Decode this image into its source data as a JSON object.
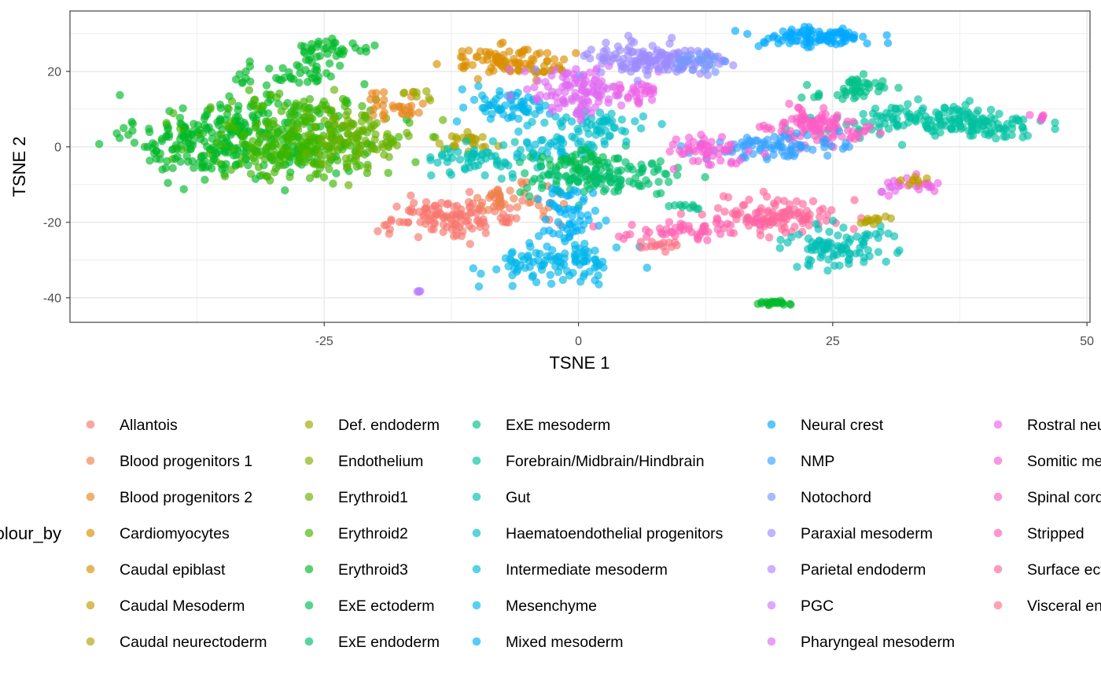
{
  "chart_data": {
    "type": "scatter",
    "xlabel": "TSNE 1",
    "ylabel": "TSNE 2",
    "xlim": [
      -50,
      50.3
    ],
    "ylim": [
      -46.5,
      36
    ],
    "x_ticks": [
      -25,
      0,
      25,
      50
    ],
    "x_tick_labels": [
      "-25",
      "0",
      "25",
      "50"
    ],
    "y_ticks": [
      -40,
      -20,
      0,
      20
    ],
    "y_tick_labels": [
      "-40",
      "-20",
      "0",
      "20"
    ],
    "grid": true,
    "point_alpha": 0.65,
    "legend_title": "colour_by",
    "legend_position": "bottom",
    "legend_entries": [
      {
        "label": "Allantois",
        "color": "#F8766D"
      },
      {
        "label": "Blood progenitors 1",
        "color": "#F07F4E"
      },
      {
        "label": "Blood progenitors 2",
        "color": "#E7861B"
      },
      {
        "label": "Cardiomyocytes",
        "color": "#DB8E00"
      },
      {
        "label": "Caudal epiblast",
        "color": "#CF9400"
      },
      {
        "label": "Caudal Mesoderm",
        "color": "#C09B00"
      },
      {
        "label": "Caudal neurectoderm",
        "color": "#B0A100"
      },
      {
        "label": "Def. endoderm",
        "color": "#9DA700"
      },
      {
        "label": "Endothelium",
        "color": "#85AD00"
      },
      {
        "label": "Erythroid1",
        "color": "#68B100"
      },
      {
        "label": "Erythroid2",
        "color": "#3DB600"
      },
      {
        "label": "Erythroid3",
        "color": "#00B928"
      },
      {
        "label": "ExE ectoderm",
        "color": "#00BB4E"
      },
      {
        "label": "ExE endoderm",
        "color": "#00BE6C"
      },
      {
        "label": "ExE mesoderm",
        "color": "#00C087"
      },
      {
        "label": "Forebrain/Midbrain/Hindbrain",
        "color": "#00C19F"
      },
      {
        "label": "Gut",
        "color": "#00BFB4"
      },
      {
        "label": "Haematoendothelial progenitors",
        "color": "#00BDC8"
      },
      {
        "label": "Intermediate mesoderm",
        "color": "#00BAD9"
      },
      {
        "label": "Mesenchyme",
        "color": "#00B6E9"
      },
      {
        "label": "Mixed mesoderm",
        "color": "#00B0F6"
      },
      {
        "label": "Neural crest",
        "color": "#00A9FF"
      },
      {
        "label": "NMP",
        "color": "#35A2FF"
      },
      {
        "label": "Notochord",
        "color": "#7698FF"
      },
      {
        "label": "Paraxial mesoderm",
        "color": "#9E8CFF"
      },
      {
        "label": "Parietal endoderm",
        "color": "#BA80FF"
      },
      {
        "label": "PGC",
        "color": "#D074FB"
      },
      {
        "label": "Pharyngeal mesoderm",
        "color": "#E16AF2"
      },
      {
        "label": "Rostral neurectoderm",
        "color": "#EE62E6"
      },
      {
        "label": "Somitic mesoderm",
        "color": "#F75ED6"
      },
      {
        "label": "Spinal cord",
        "color": "#FD5DC4"
      },
      {
        "label": "Stripped",
        "color": "#FF61B0"
      },
      {
        "label": "Surface ectoderm",
        "color": "#FF679B"
      },
      {
        "label": "Visceral endoderm",
        "color": "#FE6E86"
      }
    ],
    "clusters": [
      {
        "group": "Erythroid3",
        "cx": -33,
        "cy": 3,
        "sx": 5,
        "sy": 5.5,
        "n": 260
      },
      {
        "group": "Erythroid2",
        "cx": -27,
        "cy": 1,
        "sx": 5,
        "sy": 5,
        "n": 240
      },
      {
        "group": "Erythroid1",
        "cx": -22,
        "cy": 3,
        "sx": 3,
        "sy": 4,
        "n": 90
      },
      {
        "group": "Erythroid3",
        "cx": -39,
        "cy": 0,
        "sx": 2.5,
        "sy": 3,
        "n": 50
      },
      {
        "group": "Erythroid3",
        "cx": -28,
        "cy": 19,
        "sx": 3,
        "sy": 2,
        "n": 40
      },
      {
        "group": "Erythroid3",
        "cx": -24,
        "cy": 26,
        "sx": 1.8,
        "sy": 1.2,
        "n": 35
      },
      {
        "group": "Erythroid2",
        "cx": -27,
        "cy": 12,
        "sx": 2.5,
        "sy": 2,
        "n": 25
      },
      {
        "group": "Blood progenitors 2",
        "cx": -18,
        "cy": 11,
        "sx": 2,
        "sy": 2,
        "n": 30
      },
      {
        "group": "Def. endoderm",
        "cx": -16,
        "cy": 13.5,
        "sx": 1.2,
        "sy": 0.6,
        "n": 8
      },
      {
        "group": "Cardiomyocytes",
        "cx": -7,
        "cy": 23,
        "sx": 3,
        "sy": 1.8,
        "n": 80
      },
      {
        "group": "Caudal epiblast",
        "cx": -4,
        "cy": 20,
        "sx": 1.5,
        "sy": 1,
        "n": 15
      },
      {
        "group": "Allantois",
        "cx": -12,
        "cy": -19,
        "sx": 3.5,
        "sy": 2.5,
        "n": 110
      },
      {
        "group": "Blood progenitors 1",
        "cx": -7,
        "cy": -14,
        "sx": 2,
        "sy": 2,
        "n": 40
      },
      {
        "group": "Allantois",
        "cx": -15,
        "cy": -16,
        "sx": 1,
        "sy": 1,
        "n": 10
      },
      {
        "group": "Caudal neurectoderm",
        "cx": -11,
        "cy": 1,
        "sx": 1.5,
        "sy": 1.5,
        "n": 25
      },
      {
        "group": "Gut",
        "cx": -9,
        "cy": -3,
        "sx": 2.5,
        "sy": 2,
        "n": 60
      },
      {
        "group": "Mesenchyme",
        "cx": -7,
        "cy": 11,
        "sx": 2,
        "sy": 2.5,
        "n": 60
      },
      {
        "group": "Intermediate mesoderm",
        "cx": -2,
        "cy": 2,
        "sx": 2,
        "sy": 3,
        "n": 40
      },
      {
        "group": "ExE endoderm",
        "cx": 2,
        "cy": -8,
        "sx": 4,
        "sy": 2.5,
        "n": 140
      },
      {
        "group": "ExE ectoderm",
        "cx": 0,
        "cy": -4,
        "sx": 2,
        "sy": 1.5,
        "n": 30
      },
      {
        "group": "Mixed mesoderm",
        "cx": -1,
        "cy": -18,
        "sx": 1.5,
        "sy": 4,
        "n": 55
      },
      {
        "group": "Mesenchyme",
        "cx": 0,
        "cy": -30,
        "sx": 2.5,
        "sy": 2.5,
        "n": 70
      },
      {
        "group": "Mesenchyme",
        "cx": -6,
        "cy": -32,
        "sx": 1.5,
        "sy": 2,
        "n": 30
      },
      {
        "group": "Haematoendothelial progenitors",
        "cx": 2,
        "cy": 5,
        "sx": 2.5,
        "sy": 2.5,
        "n": 50
      },
      {
        "group": "Pharyngeal mesoderm",
        "cx": 0,
        "cy": 15,
        "sx": 2.5,
        "sy": 3.5,
        "n": 110
      },
      {
        "group": "Paraxial mesoderm",
        "cx": 7,
        "cy": 23,
        "sx": 3.5,
        "sy": 2.5,
        "n": 140
      },
      {
        "group": "Notochord",
        "cx": 12,
        "cy": 22,
        "sx": 1.5,
        "sy": 1.5,
        "n": 30
      },
      {
        "group": "Rostral neurectoderm",
        "cx": 6,
        "cy": 14,
        "sx": 1.5,
        "sy": 1.5,
        "n": 25
      },
      {
        "group": "Parietal endoderm",
        "cx": -15.7,
        "cy": -38.3,
        "sx": 0.15,
        "sy": 0.15,
        "n": 4
      },
      {
        "group": "Neural crest",
        "cx": 23,
        "cy": 29,
        "sx": 2.8,
        "sy": 1.3,
        "n": 90
      },
      {
        "group": "Forebrain/Midbrain/Hindbrain",
        "cx": 34,
        "cy": 7,
        "sx": 4.5,
        "sy": 2,
        "n": 130
      },
      {
        "group": "Forebrain/Midbrain/Hindbrain",
        "cx": 41,
        "cy": 6,
        "sx": 2.5,
        "sy": 2,
        "n": 50
      },
      {
        "group": "ExE mesoderm",
        "cx": 27,
        "cy": 15,
        "sx": 2,
        "sy": 1.5,
        "n": 45
      },
      {
        "group": "Spinal cord",
        "cx": 24,
        "cy": 5,
        "sx": 2.5,
        "sy": 2.5,
        "n": 100
      },
      {
        "group": "NMP",
        "cx": 19,
        "cy": 0,
        "sx": 3.5,
        "sy": 1.5,
        "n": 80
      },
      {
        "group": "Somitic mesoderm",
        "cx": 12,
        "cy": -1,
        "sx": 2,
        "sy": 2,
        "n": 50
      },
      {
        "group": "Surface ectoderm",
        "cx": 20,
        "cy": -18,
        "sx": 3,
        "sy": 2.5,
        "n": 110
      },
      {
        "group": "Stripped",
        "cx": 11,
        "cy": -22,
        "sx": 3,
        "sy": 1.5,
        "n": 50
      },
      {
        "group": "Visceral endoderm",
        "cx": 8,
        "cy": -26,
        "sx": 1.2,
        "sy": 0.8,
        "n": 15
      },
      {
        "group": "Gut",
        "cx": 25,
        "cy": -26,
        "sx": 2.5,
        "sy": 3,
        "n": 90
      },
      {
        "group": "ExE mesoderm",
        "cx": 11,
        "cy": -16,
        "sx": 1,
        "sy": 0.5,
        "n": 10
      },
      {
        "group": "Erythroid3",
        "cx": 19,
        "cy": -41.5,
        "sx": 0.9,
        "sy": 0.5,
        "n": 20
      },
      {
        "group": "Rostral neurectoderm",
        "cx": 33,
        "cy": -10,
        "sx": 1.5,
        "sy": 1,
        "n": 20
      },
      {
        "group": "Caudal neurectoderm",
        "cx": 29,
        "cy": -19.5,
        "sx": 1,
        "sy": 0.8,
        "n": 12
      },
      {
        "group": "Caudal Mesoderm",
        "cx": 33,
        "cy": -9,
        "sx": 1,
        "sy": 0.6,
        "n": 8
      },
      {
        "group": "Somitic mesoderm",
        "cx": 45,
        "cy": 8,
        "sx": 0.8,
        "sy": 0.4,
        "n": 6
      },
      {
        "group": "Pharyngeal mesoderm",
        "cx": 30,
        "cy": -11,
        "sx": 0.6,
        "sy": 0.6,
        "n": 5
      }
    ]
  }
}
